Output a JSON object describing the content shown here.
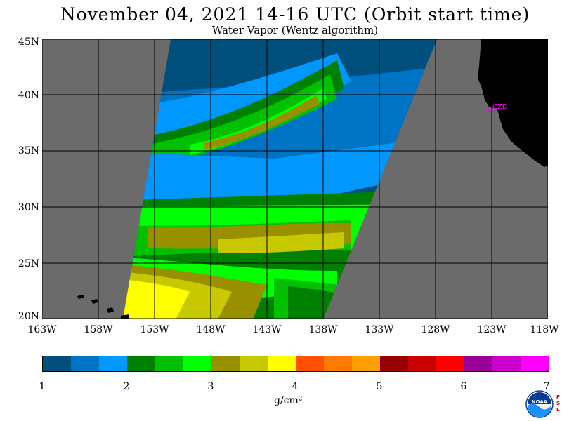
{
  "title": "November 04, 2021  14-16 UTC  (Orbit start time)",
  "subtitle": "Water Vapor (Wentz algorithm)",
  "lat_labels": [
    "45N",
    "40N",
    "35N",
    "30N",
    "25N",
    "20N"
  ],
  "lon_labels": [
    "163W",
    "158W",
    "153W",
    "148W",
    "143W",
    "138W",
    "133W",
    "128W",
    "123W",
    "118W"
  ],
  "city_label": "CZD",
  "colorbar": {
    "colors": [
      "#004f7c",
      "#0074c4",
      "#0098ff",
      "#008000",
      "#00c000",
      "#00ff00",
      "#999000",
      "#c8c800",
      "#ffff00",
      "#ff5000",
      "#ff7a00",
      "#ffa000",
      "#960000",
      "#c80000",
      "#ff0000",
      "#990099",
      "#cc00cc",
      "#ff00ff"
    ],
    "ticks": [
      "1",
      "2",
      "3",
      "4",
      "5",
      "6",
      "7"
    ],
    "unit": "g/cm²"
  },
  "map_colors": {
    "land": "#000000",
    "no_data": "#6b6b6b",
    "grid": "#000000",
    "label": "#ff00ff"
  },
  "logo_text": "NOAA",
  "psl_text": "PSL"
}
